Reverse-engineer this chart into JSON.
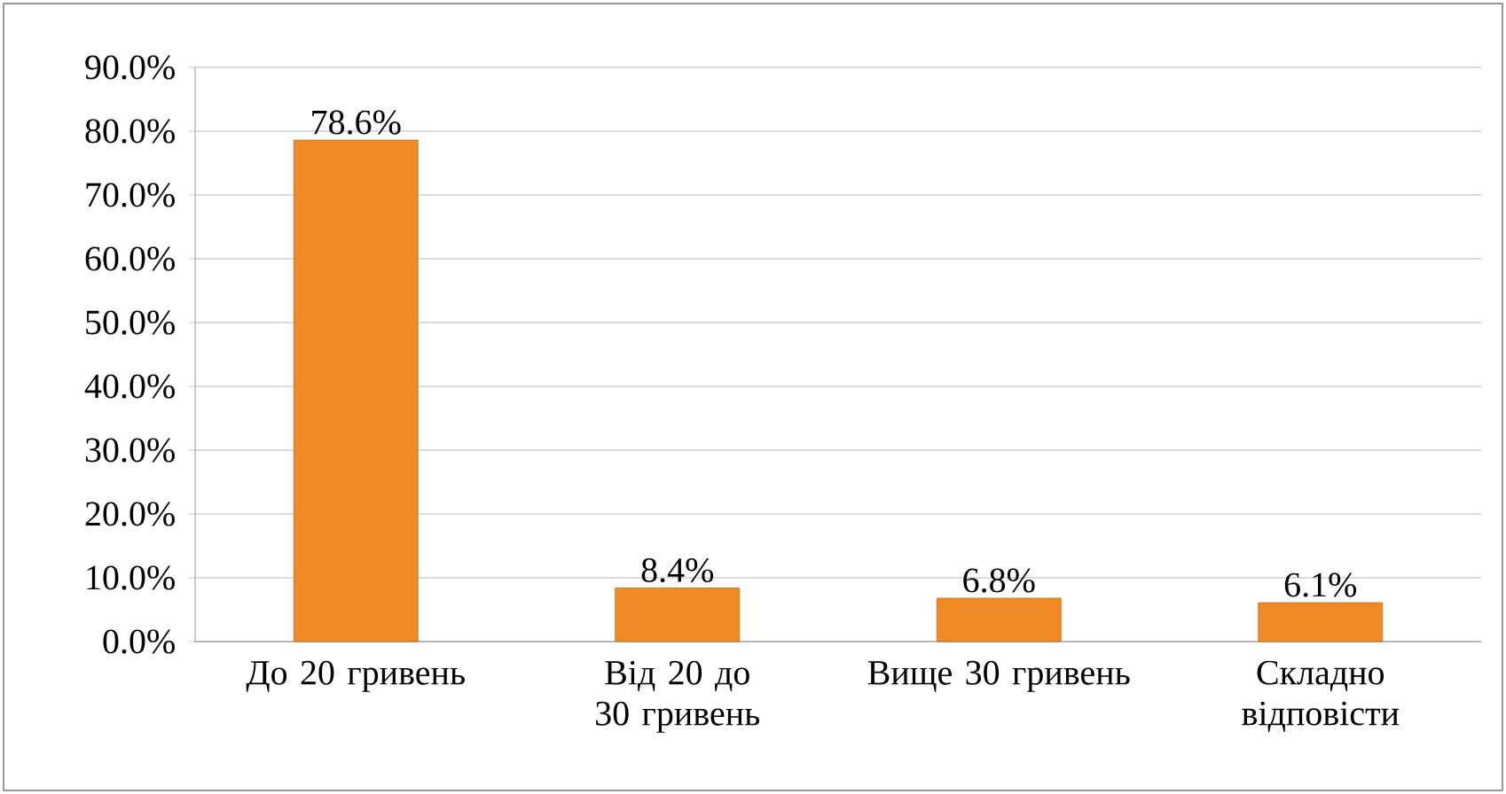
{
  "chart_data": {
    "type": "bar",
    "categories": [
      "До 20 гривень",
      "Від 20 до 30 гривень",
      "Вище 30 гривень",
      "Складно відповісти"
    ],
    "values": [
      78.6,
      8.4,
      6.8,
      6.1
    ],
    "value_labels": [
      "78.6%",
      "8.4%",
      "6.8%",
      "6.1%"
    ],
    "color": "#f08a24",
    "ylim": [
      0,
      90
    ],
    "yticks": [
      {
        "value": 0,
        "label": "0.0%"
      },
      {
        "value": 10,
        "label": "10.0%"
      },
      {
        "value": 20,
        "label": "20.0%"
      },
      {
        "value": 30,
        "label": "30.0%"
      },
      {
        "value": 40,
        "label": "40.0%"
      },
      {
        "value": 50,
        "label": "50.0%"
      },
      {
        "value": 60,
        "label": "60.0%"
      },
      {
        "value": 70,
        "label": "70.0%"
      },
      {
        "value": 80,
        "label": "80.0%"
      },
      {
        "value": 90,
        "label": "90.0%"
      }
    ],
    "grid": "y"
  }
}
